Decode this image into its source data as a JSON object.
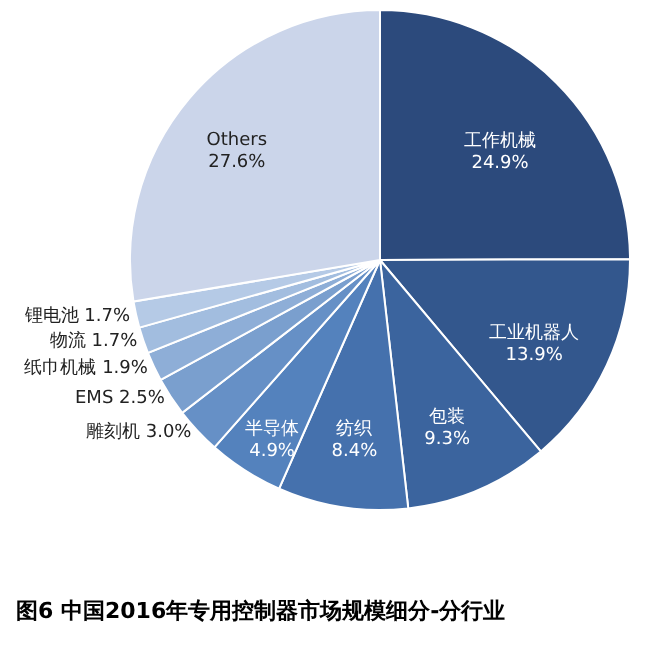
{
  "chart_data": {
    "type": "pie",
    "title": "图6 中国2016年专用控制器市场规模细分-分行业",
    "categories": [
      "工作机械",
      "工业机器人",
      "包装",
      "纺织",
      "半导体",
      "雕刻机",
      "EMS",
      "纸巾机械",
      "物流",
      "锂电池",
      "Others"
    ],
    "values": [
      24.9,
      13.9,
      9.3,
      8.4,
      4.9,
      3.0,
      2.5,
      1.9,
      1.7,
      1.7,
      27.6
    ],
    "value_labels": [
      "24.9%",
      "13.9%",
      "9.3%",
      "8.4%",
      "4.9%",
      "3.0%",
      "2.5%",
      "1.9%",
      "1.7%",
      "1.7%",
      "27.6%"
    ],
    "colors": [
      "#2c4a7c",
      "#33578d",
      "#3b649e",
      "#4571ad",
      "#5482bd",
      "#6690c6",
      "#7a9fce",
      "#8eaed7",
      "#a2bddf",
      "#b5cae6",
      "#cbd5ea"
    ]
  }
}
